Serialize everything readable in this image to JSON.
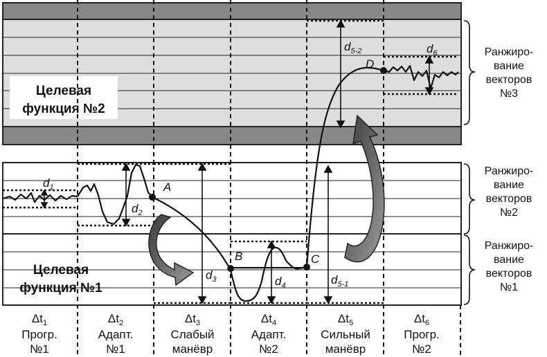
{
  "target_function_2": [
    "Целевая",
    "функция №2"
  ],
  "target_function_1": [
    "Целевая",
    "функция №1"
  ],
  "ranking_3": [
    "Ранжиро-",
    "вание",
    "векторов",
    "№3"
  ],
  "ranking_2": [
    "Ранжиро-",
    "вание",
    "векторов",
    "№2"
  ],
  "ranking_1": [
    "Ранжиро-",
    "вание",
    "векторов",
    "№1"
  ],
  "points": {
    "A": "A",
    "B": "B",
    "C": "C",
    "D": "D"
  },
  "distances": {
    "d1": "d",
    "d1_sub": "1",
    "d2": "d",
    "d2_sub": "2",
    "d3": "d",
    "d3_sub": "3",
    "d4": "d",
    "d4_sub": "4",
    "d5_1": "d",
    "d5_1_sub": "5-1",
    "d5_2": "d",
    "d5_2_sub": "5-2",
    "d6": "d",
    "d6_sub": "6"
  },
  "intervals": [
    {
      "delta": "Δt",
      "sub": "1",
      "line1": "Прогр.",
      "line2": "№1"
    },
    {
      "delta": "Δt",
      "sub": "2",
      "line1": "Адапт.",
      "line2": "№1"
    },
    {
      "delta": "Δt",
      "sub": "3",
      "line1": "Слабый",
      "line2": "манёвр"
    },
    {
      "delta": "Δt",
      "sub": "4",
      "line1": "Адапт.",
      "line2": "№2"
    },
    {
      "delta": "Δt",
      "sub": "5",
      "line1": "Сильный",
      "line2": "манёвр"
    },
    {
      "delta": "Δt",
      "sub": "6",
      "line1": "Прогр.",
      "line2": "№2"
    }
  ]
}
